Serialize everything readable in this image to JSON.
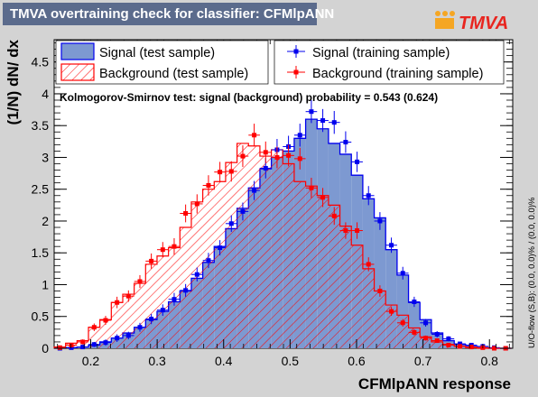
{
  "header": {
    "title": "TMVA overtraining check for classifier: CFMlpANN",
    "logo_text": "TMVA"
  },
  "colors": {
    "signal_fill": "#7d99d1",
    "signal_line": "#0000ee",
    "background_line": "#ff0000",
    "frame_bg": "#ffffff",
    "canvas_bg": "#d3d3d3",
    "title_bg": "#5b6b8c"
  },
  "chart_data": {
    "type": "histogram",
    "xlabel": "CFMlpANN response",
    "ylabel": "(1/N) dN/ dx",
    "xlim": [
      0.145,
      0.835
    ],
    "ylim": [
      0,
      4.85
    ],
    "x_ticks": [
      0.2,
      0.3,
      0.4,
      0.5,
      0.6,
      0.7,
      0.8
    ],
    "y_ticks": [
      0,
      0.5,
      1,
      1.5,
      2,
      2.5,
      3,
      3.5,
      4,
      4.5
    ],
    "x_tick_labels": [
      "0.2",
      "0.3",
      "0.4",
      "0.5",
      "0.6",
      "0.7",
      "0.8"
    ],
    "y_tick_labels": [
      "0",
      "0.5",
      "1",
      "1.5",
      "2",
      "2.5",
      "3",
      "3.5",
      "4",
      "4.5"
    ],
    "bin_start": 0.145,
    "bin_width": 0.0172,
    "legend": [
      {
        "label": "Signal (test sample)",
        "style": "fill-signal"
      },
      {
        "label": "Signal (training sample)",
        "style": "marker-signal"
      },
      {
        "label": "Background (test sample)",
        "style": "hatch-background"
      },
      {
        "label": "Background (training sample)",
        "style": "marker-background"
      }
    ],
    "ks_text": "Kolmogorov-Smirnov test: signal (background) probability = 0.543 (0.624)",
    "overflow_text": "U/O-flow (S,B): (0.0, 0.0)% / (0.0, 0.0)%",
    "series": [
      {
        "name": "Signal (test sample)",
        "values": [
          0,
          0.01,
          0.02,
          0.05,
          0.1,
          0.16,
          0.24,
          0.33,
          0.45,
          0.58,
          0.73,
          0.9,
          1.1,
          1.35,
          1.6,
          1.88,
          2.2,
          2.52,
          2.82,
          3.0,
          3.1,
          3.3,
          3.6,
          3.45,
          3.22,
          3.05,
          2.72,
          2.35,
          2.05,
          1.55,
          1.15,
          0.72,
          0.45,
          0.24,
          0.12,
          0.06,
          0.03,
          0.01,
          0,
          0
        ]
      },
      {
        "name": "Background (test sample)",
        "values": [
          0.02,
          0.08,
          0.12,
          0.33,
          0.45,
          0.72,
          0.85,
          1.02,
          1.32,
          1.45,
          1.58,
          1.9,
          2.3,
          2.5,
          2.62,
          2.92,
          3.22,
          3.18,
          3.02,
          3.12,
          2.9,
          2.62,
          2.55,
          2.4,
          2.25,
          1.92,
          1.62,
          1.25,
          0.9,
          0.68,
          0.52,
          0.32,
          0.18,
          0.1,
          0.06,
          0.03,
          0.01,
          0,
          0,
          0
        ]
      },
      {
        "name": "Signal (training sample)",
        "values": [
          0,
          0.01,
          0.02,
          0.06,
          0.09,
          0.16,
          0.2,
          0.33,
          0.46,
          0.6,
          0.77,
          0.91,
          1.16,
          1.38,
          1.58,
          1.96,
          2.15,
          2.48,
          2.83,
          3.12,
          3.17,
          3.35,
          3.72,
          3.58,
          3.55,
          3.24,
          2.93,
          2.4,
          2.0,
          1.62,
          1.18,
          0.73,
          0.4,
          0.22,
          0.15,
          0.07,
          0.05,
          0.03,
          0.01,
          0
        ],
        "errors": [
          0,
          0.02,
          0.03,
          0.04,
          0.05,
          0.06,
          0.06,
          0.07,
          0.08,
          0.09,
          0.1,
          0.1,
          0.11,
          0.12,
          0.12,
          0.13,
          0.14,
          0.15,
          0.16,
          0.17,
          0.17,
          0.18,
          0.18,
          0.18,
          0.18,
          0.17,
          0.16,
          0.15,
          0.14,
          0.12,
          0.1,
          0.08,
          0.06,
          0.05,
          0.04,
          0.03,
          0.02,
          0.02,
          0.01,
          0
        ]
      },
      {
        "name": "Background (training sample)",
        "values": [
          0.01,
          0.05,
          0.1,
          0.33,
          0.44,
          0.72,
          0.82,
          1.05,
          1.37,
          1.55,
          1.6,
          2.12,
          2.27,
          2.56,
          2.77,
          2.78,
          3.02,
          3.35,
          3.08,
          3.0,
          3.03,
          2.98,
          2.52,
          2.37,
          2.08,
          1.85,
          1.85,
          1.32,
          0.9,
          0.58,
          0.4,
          0.25,
          0.16,
          0.12,
          0.05,
          0.03,
          0.02,
          0.01,
          0,
          0
        ],
        "errors": [
          0.01,
          0.03,
          0.04,
          0.06,
          0.07,
          0.09,
          0.09,
          0.1,
          0.12,
          0.12,
          0.13,
          0.14,
          0.15,
          0.16,
          0.16,
          0.16,
          0.17,
          0.18,
          0.17,
          0.17,
          0.17,
          0.17,
          0.16,
          0.15,
          0.14,
          0.13,
          0.13,
          0.11,
          0.09,
          0.07,
          0.06,
          0.05,
          0.04,
          0.03,
          0.02,
          0.02,
          0.01,
          0.01,
          0,
          0
        ]
      }
    ]
  }
}
